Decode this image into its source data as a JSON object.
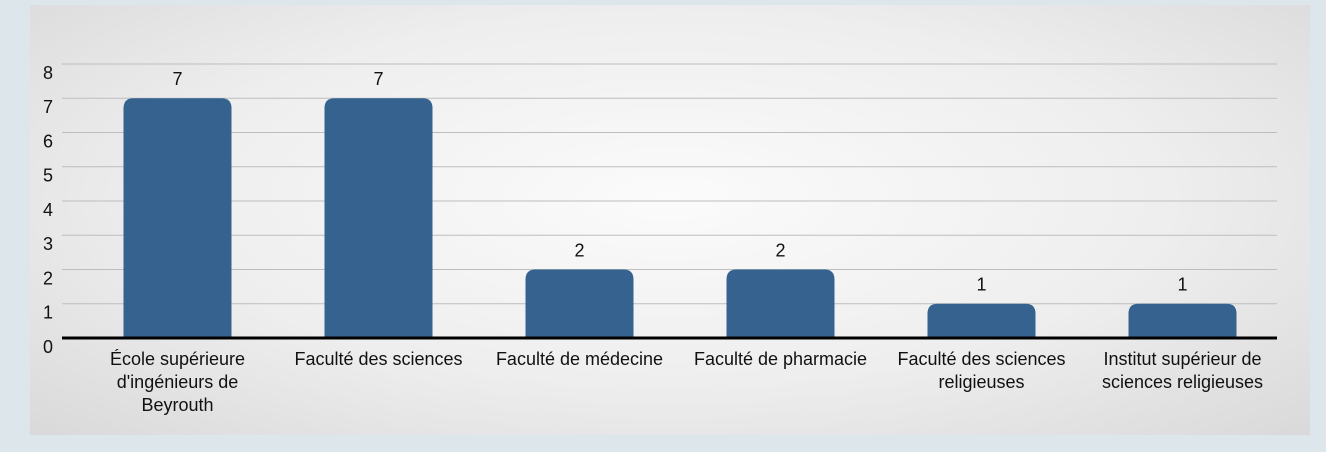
{
  "chart_data": {
    "type": "bar",
    "categories": [
      "École supérieure d'ingénieurs de Beyrouth",
      "Faculté des sciences",
      "Faculté de médecine",
      "Faculté de pharmacie",
      "Faculté des sciences religieuses",
      "Institut supérieur de sciences religieuses"
    ],
    "values": [
      7,
      7,
      2,
      2,
      1,
      1
    ],
    "color": "#35628e",
    "ylim": [
      0,
      8
    ],
    "yticks": [
      0,
      1,
      2,
      3,
      4,
      5,
      6,
      7,
      8
    ],
    "grid": true
  }
}
